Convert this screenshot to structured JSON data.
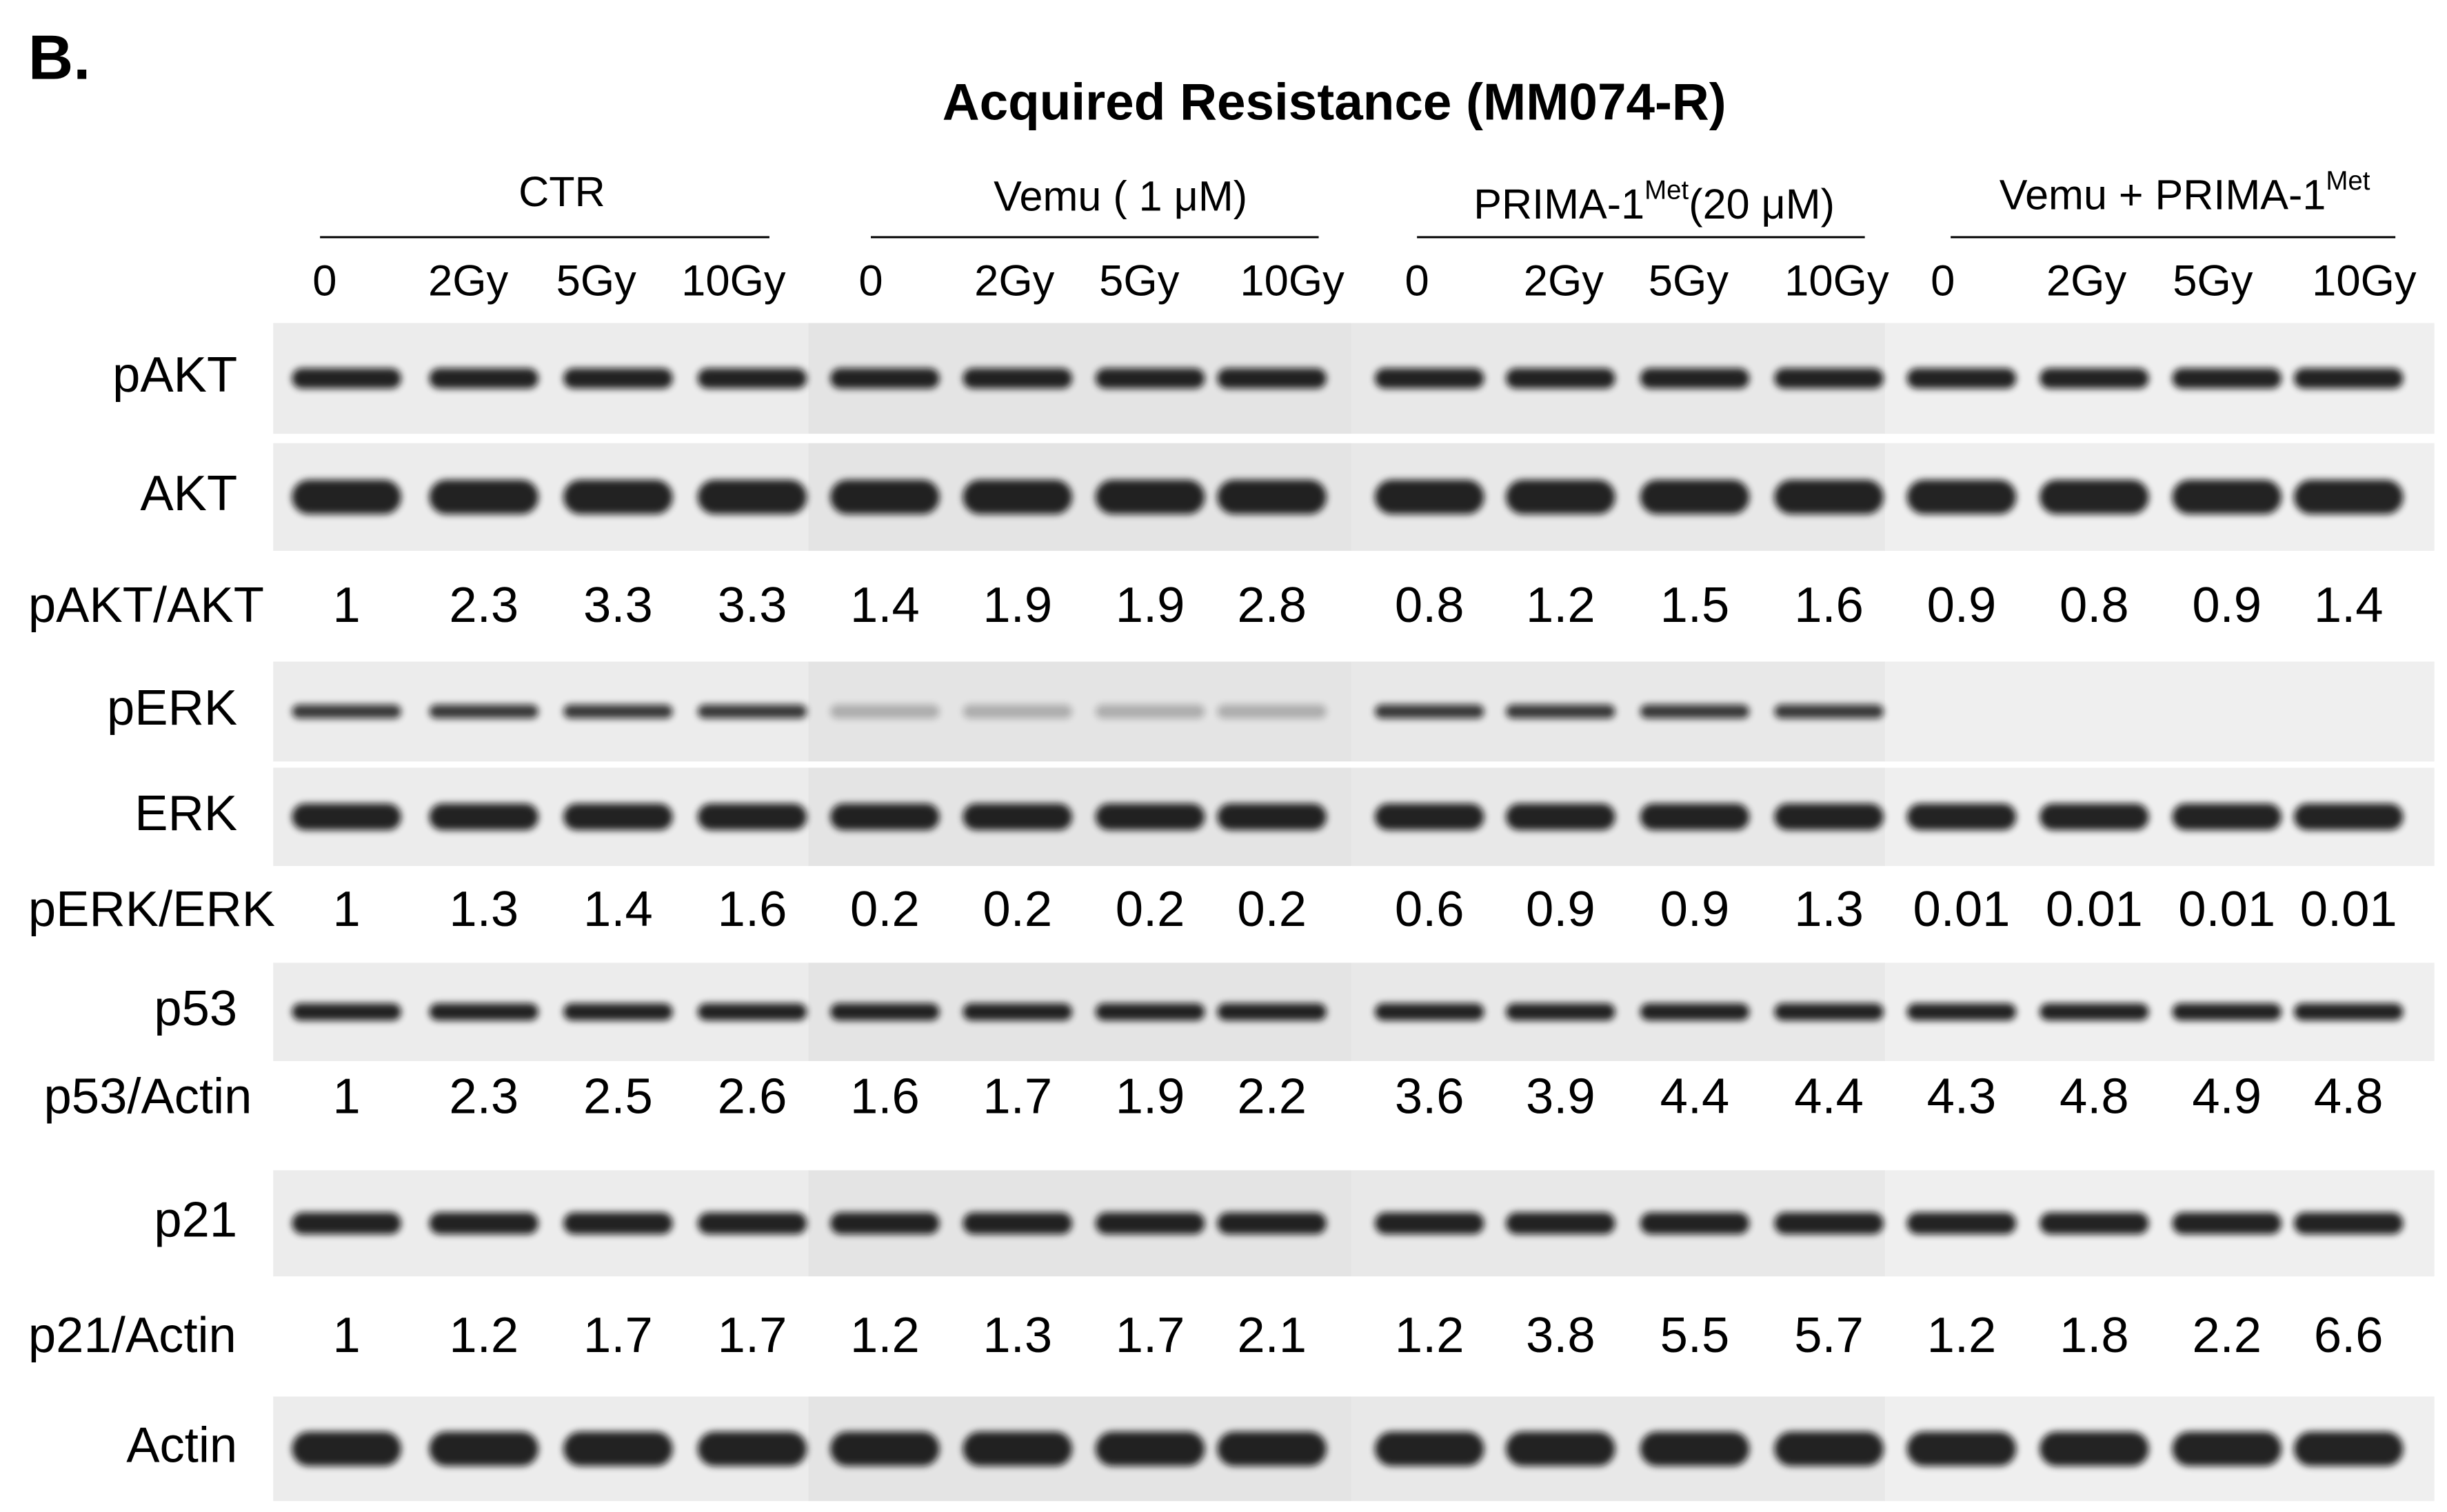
{
  "label": "B.",
  "title": "Acquired  Resistance (MM074-R)",
  "groups": [
    {
      "name": "CTR"
    },
    {
      "name": "Vemu ( 1 μM)"
    },
    {
      "name": "PRIMA-1",
      "sup": "Met",
      "suffix": "(20 μM)"
    },
    {
      "name": "Vemu + PRIMA-1",
      "sup": "Met"
    }
  ],
  "lanes": [
    "0",
    "2Gy",
    "5Gy",
    "10Gy",
    "0",
    "2Gy",
    "5Gy",
    "10Gy",
    "0",
    "2Gy",
    "5Gy",
    "10Gy",
    "0",
    "2Gy",
    "5Gy",
    "10Gy"
  ],
  "rows": [
    {
      "kind": "blot",
      "label": "pAKT"
    },
    {
      "kind": "blot",
      "label": "AKT"
    },
    {
      "kind": "quant",
      "label": "pAKT/AKT",
      "values": [
        "1",
        "2.3",
        "3.3",
        "3.3",
        "1.4",
        "1.9",
        "1.9",
        "2.8",
        "0.8",
        "1.2",
        "1.5",
        "1.6",
        "0.9",
        "0.8",
        "0.9",
        "1.4"
      ]
    },
    {
      "kind": "blot",
      "label": "pERK"
    },
    {
      "kind": "blot",
      "label": "ERK"
    },
    {
      "kind": "quant",
      "label": "pERK/ERK",
      "values": [
        "1",
        "1.3",
        "1.4",
        "1.6",
        "0.2",
        "0.2",
        "0.2",
        "0.2",
        "0.6",
        "0.9",
        "0.9",
        "1.3",
        "0.01",
        "0.01",
        "0.01",
        "0.01"
      ]
    },
    {
      "kind": "blot",
      "label": "p53"
    },
    {
      "kind": "quant",
      "label": "p53/Actin",
      "values": [
        "1",
        "2.3",
        "2.5",
        "2.6",
        "1.6",
        "1.7",
        "1.9",
        "2.2",
        "3.6",
        "3.9",
        "4.4",
        "4.4",
        "4.3",
        "4.8",
        "4.9",
        "4.8"
      ]
    },
    {
      "kind": "blot",
      "label": "p21"
    },
    {
      "kind": "quant",
      "label": "p21/Actin",
      "values": [
        "1",
        "1.2",
        "1.7",
        "1.7",
        "1.2",
        "1.3",
        "1.7",
        "2.1",
        "1.2",
        "3.8",
        "5.5",
        "5.7",
        "1.2",
        "1.8",
        "2.2",
        "6.6"
      ]
    },
    {
      "kind": "blot",
      "label": "Actin"
    }
  ]
}
